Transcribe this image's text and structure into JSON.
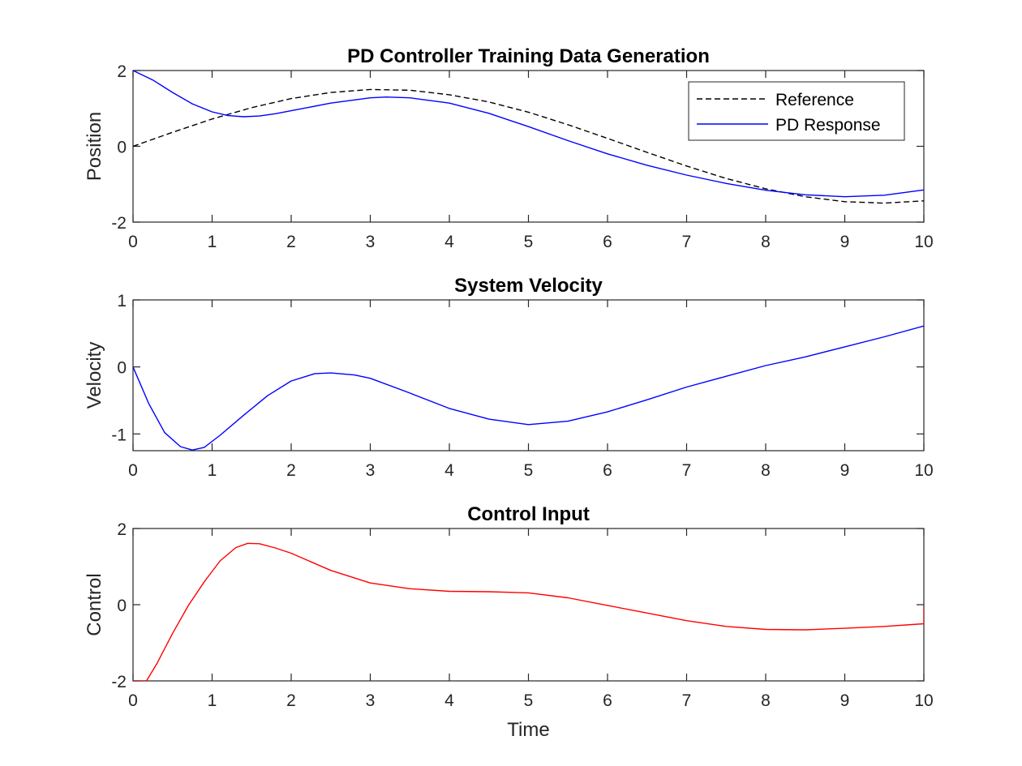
{
  "chart_data": [
    {
      "type": "line",
      "title": "PD Controller Training Data Generation",
      "xlabel": "",
      "ylabel": "Position",
      "xlim": [
        0,
        10
      ],
      "ylim": [
        -2,
        2
      ],
      "xticks": [
        0,
        1,
        2,
        3,
        4,
        5,
        6,
        7,
        8,
        9,
        10
      ],
      "yticks": [
        -2,
        0,
        2
      ],
      "legend": {
        "placement": "top-right"
      },
      "series": [
        {
          "name": "Reference",
          "color": "#000000",
          "style": "dashed",
          "x": [
            0,
            0.5,
            1,
            1.5,
            2,
            2.5,
            3,
            3.5,
            4,
            4.5,
            5,
            5.5,
            6,
            6.5,
            7,
            7.5,
            8,
            8.5,
            9,
            9.5,
            10
          ],
          "y": [
            0,
            0.37,
            0.72,
            1.02,
            1.26,
            1.42,
            1.5,
            1.48,
            1.36,
            1.17,
            0.9,
            0.57,
            0.21,
            -0.16,
            -0.52,
            -0.85,
            -1.12,
            -1.33,
            -1.46,
            -1.5,
            -1.44
          ]
        },
        {
          "name": "PD Response",
          "color": "#0000ff",
          "style": "solid",
          "x": [
            0,
            0.25,
            0.5,
            0.75,
            1,
            1.2,
            1.4,
            1.6,
            1.8,
            2,
            2.5,
            3,
            3.2,
            3.5,
            4,
            4.5,
            5,
            5.5,
            6,
            6.5,
            7,
            7.5,
            8,
            8.5,
            9,
            9.5,
            10
          ],
          "y": [
            2,
            1.75,
            1.42,
            1.12,
            0.91,
            0.81,
            0.78,
            0.8,
            0.86,
            0.94,
            1.14,
            1.28,
            1.3,
            1.28,
            1.14,
            0.87,
            0.52,
            0.15,
            -0.2,
            -0.5,
            -0.76,
            -0.98,
            -1.16,
            -1.28,
            -1.33,
            -1.29,
            -1.15
          ]
        }
      ]
    },
    {
      "type": "line",
      "title": "System Velocity",
      "xlabel": "",
      "ylabel": "Velocity",
      "xlim": [
        0,
        10
      ],
      "ylim": [
        -1.25,
        1
      ],
      "xticks": [
        0,
        1,
        2,
        3,
        4,
        5,
        6,
        7,
        8,
        9,
        10
      ],
      "yticks": [
        -1,
        0,
        1
      ],
      "series": [
        {
          "name": "",
          "color": "#0000ff",
          "style": "solid",
          "x": [
            0,
            0.2,
            0.4,
            0.6,
            0.75,
            0.9,
            1.1,
            1.4,
            1.7,
            2,
            2.3,
            2.5,
            2.8,
            3,
            3.5,
            4,
            4.5,
            5,
            5.5,
            6,
            6.5,
            7,
            7.5,
            8,
            8.5,
            9,
            9.5,
            10
          ],
          "y": [
            0,
            -0.55,
            -0.98,
            -1.19,
            -1.24,
            -1.2,
            -1.02,
            -0.72,
            -0.43,
            -0.21,
            -0.1,
            -0.09,
            -0.12,
            -0.17,
            -0.39,
            -0.62,
            -0.78,
            -0.86,
            -0.81,
            -0.67,
            -0.49,
            -0.3,
            -0.14,
            0.02,
            0.15,
            0.3,
            0.45,
            0.61
          ]
        }
      ]
    },
    {
      "type": "line",
      "title": "Control Input",
      "xlabel": "Time",
      "ylabel": "Control",
      "xlim": [
        0,
        10
      ],
      "ylim": [
        -2,
        2
      ],
      "xticks": [
        0,
        1,
        2,
        3,
        4,
        5,
        6,
        7,
        8,
        9,
        10
      ],
      "yticks": [
        -2,
        0,
        2
      ],
      "series": [
        {
          "name": "",
          "color": "#ff0000",
          "style": "solid",
          "x": [
            0,
            0.17,
            0.3,
            0.5,
            0.7,
            0.9,
            1.1,
            1.3,
            1.45,
            1.6,
            1.8,
            2,
            2.5,
            3,
            3.5,
            4,
            4.5,
            5,
            5.5,
            6,
            6.5,
            7,
            7.5,
            8,
            8.5,
            9,
            9.5,
            10,
            10
          ],
          "y": [
            -2,
            -2,
            -1.55,
            -0.75,
            -0.02,
            0.6,
            1.15,
            1.5,
            1.61,
            1.6,
            1.49,
            1.35,
            0.9,
            0.57,
            0.42,
            0.35,
            0.34,
            0.31,
            0.18,
            -0.02,
            -0.22,
            -0.42,
            -0.57,
            -0.65,
            -0.66,
            -0.62,
            -0.57,
            -0.5,
            -0.05
          ]
        }
      ]
    }
  ]
}
